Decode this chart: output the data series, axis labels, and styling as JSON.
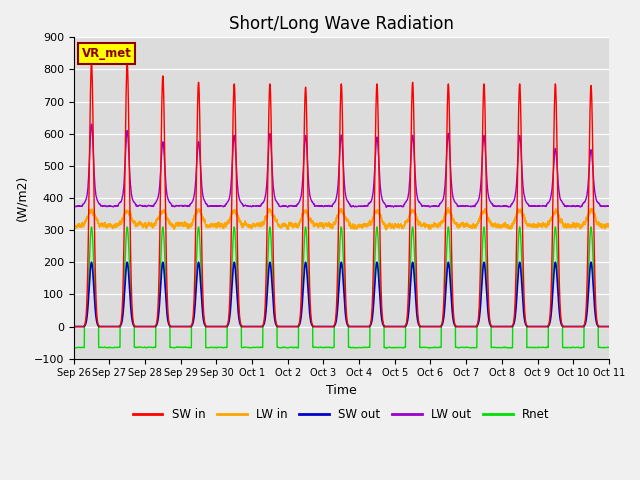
{
  "title": "Short/Long Wave Radiation",
  "ylabel": "(W/m2)",
  "xlabel": "Time",
  "ylim": [
    -100,
    900
  ],
  "yticks": [
    -100,
    0,
    100,
    200,
    300,
    400,
    500,
    600,
    700,
    800,
    900
  ],
  "num_days": 15,
  "colors": {
    "SW_in": "#ff0000",
    "LW_in": "#ffa500",
    "SW_out": "#0000cc",
    "LW_out": "#9900cc",
    "Rnet": "#00dd00"
  },
  "legend_labels": [
    "SW in",
    "LW in",
    "SW out",
    "LW out",
    "Rnet"
  ],
  "station_label": "VR_met",
  "background_color": "#dcdcdc",
  "title_fontsize": 12
}
